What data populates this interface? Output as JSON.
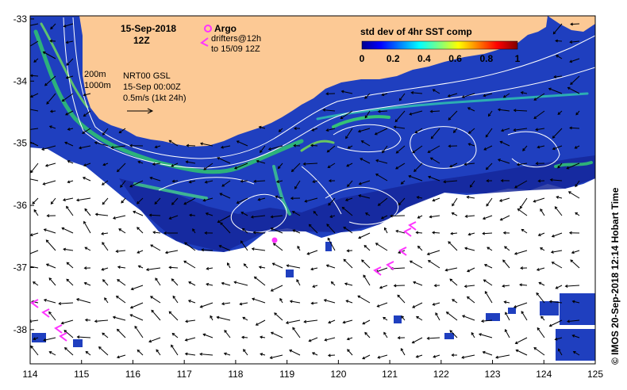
{
  "map": {
    "date_title": "15-Sep-2018",
    "time_title": "12Z",
    "legend": {
      "argo_label": "Argo",
      "drifters_label": "drifters@12h",
      "drifters_period": "to 15/09 12Z",
      "argo_color": "#ff33ff",
      "drifter_color": "#ff33ff"
    },
    "contours": {
      "label_200m": "200m",
      "label_1000m": "1000m"
    },
    "currents": {
      "source": "NRT00 GSL",
      "time": "15-Sep 00:00Z",
      "scale": "0.5m/s (1kt 24h)"
    },
    "colorbar": {
      "title": "std dev of 4hr SST comp",
      "ticks": [
        "0",
        "0.2",
        "0.4",
        "0.6",
        "0.8",
        "1"
      ],
      "range": [
        0,
        1
      ]
    },
    "x_ticks": [
      "114",
      "115",
      "116",
      "117",
      "118",
      "119",
      "120",
      "121",
      "122",
      "123",
      "124",
      "125"
    ],
    "y_ticks": [
      "-33",
      "-34",
      "-35",
      "-36",
      "-37",
      "-38"
    ],
    "x_range": [
      114,
      125
    ],
    "y_range": [
      -38.55,
      -32.95
    ],
    "credit": "© IMOS 20-Sep-2018 12:14 Hobart Time",
    "land_color": "#fcc995",
    "ocean_color": "#1f3fbf"
  }
}
